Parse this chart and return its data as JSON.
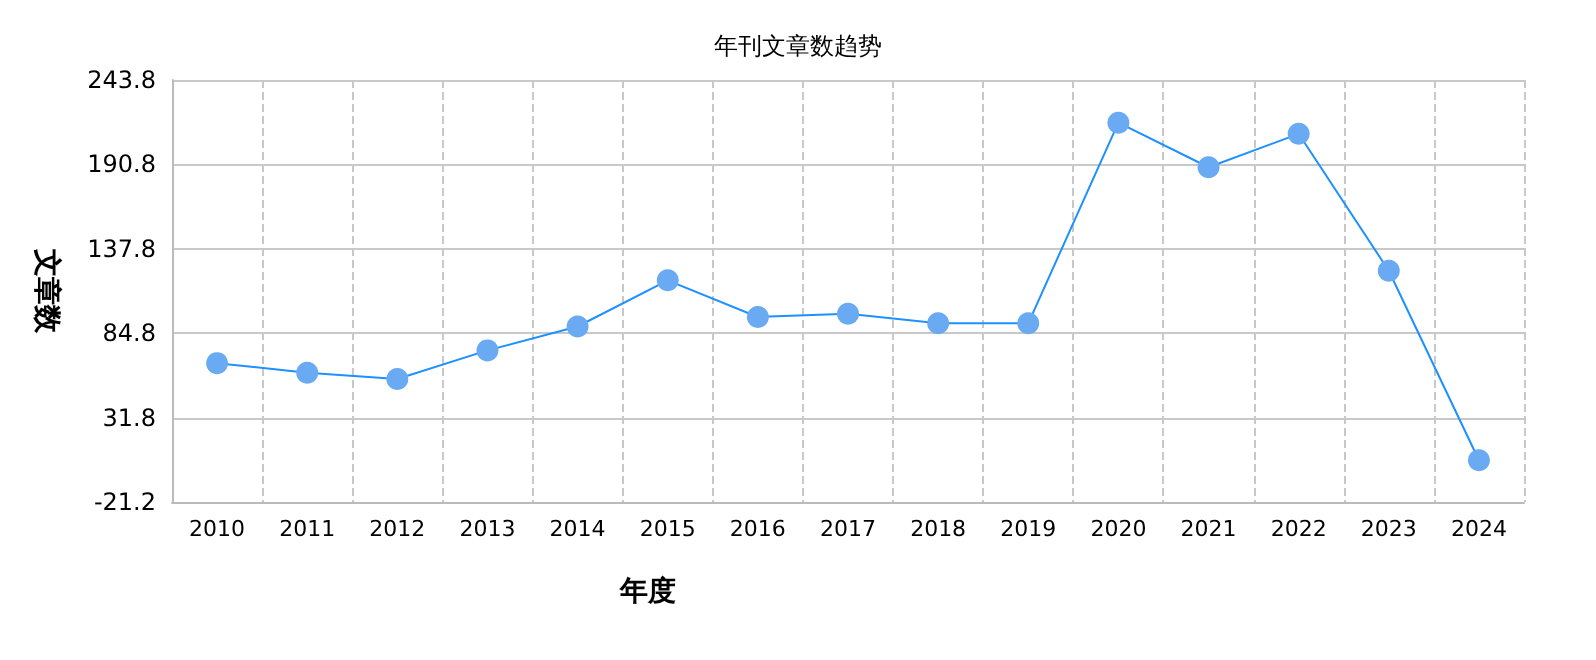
{
  "chart_data": {
    "type": "line",
    "title": "年刊文章数趋势",
    "xlabel": "年度",
    "ylabel": "文章数",
    "categories": [
      "2010",
      "2011",
      "2012",
      "2013",
      "2014",
      "2015",
      "2016",
      "2017",
      "2018",
      "2019",
      "2020",
      "2021",
      "2022",
      "2023",
      "2024"
    ],
    "series": [
      {
        "color": "#1e90ff",
        "values": [
          66,
          60,
          56,
          74,
          89,
          118,
          95,
          97,
          91,
          91,
          217,
          189,
          210,
          124,
          5
        ]
      }
    ],
    "ylim": [
      -21.2,
      243.8
    ],
    "yticks": [
      -21.2,
      31.8,
      84.8,
      137.8,
      190.8,
      243.8
    ],
    "grid": true,
    "marker": "circle",
    "line_style": "solid"
  }
}
